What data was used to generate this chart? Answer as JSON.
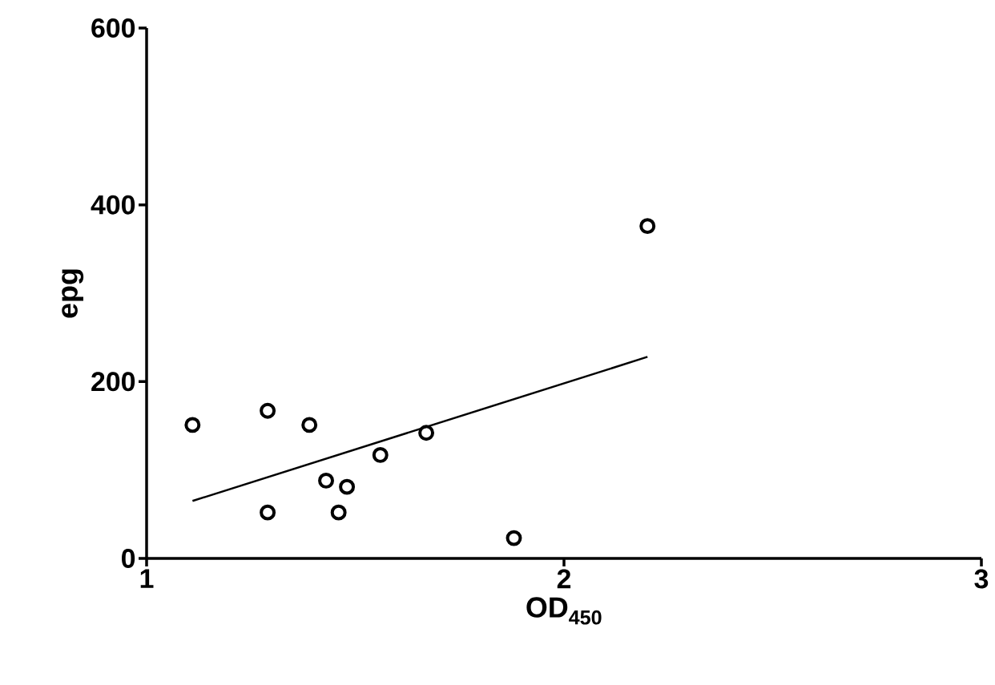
{
  "chart_data": {
    "type": "scatter",
    "xlabel": "OD$_{450}$",
    "ylabel": "epg",
    "xlim": [
      1,
      3
    ],
    "xticks": [
      1,
      2,
      3
    ],
    "ylim": [
      0,
      600
    ],
    "yticks": [
      0,
      200,
      400,
      600
    ],
    "grid": false,
    "marker": "circle",
    "series": [
      {
        "color": "#000000",
        "x": [
          1.11,
          1.29,
          1.39,
          1.43,
          1.48,
          1.46,
          1.29,
          1.56,
          1.67,
          1.88,
          2.2
        ],
        "values": [
          151,
          167,
          151,
          88,
          81,
          52,
          52,
          117,
          142,
          23,
          376
        ]
      },
      {
        "type": "line",
        "color": "#000000",
        "marker": "none",
        "line_style": "solid",
        "x": [
          1.11,
          2.2
        ],
        "values": [
          65,
          228
        ]
      }
    ]
  }
}
